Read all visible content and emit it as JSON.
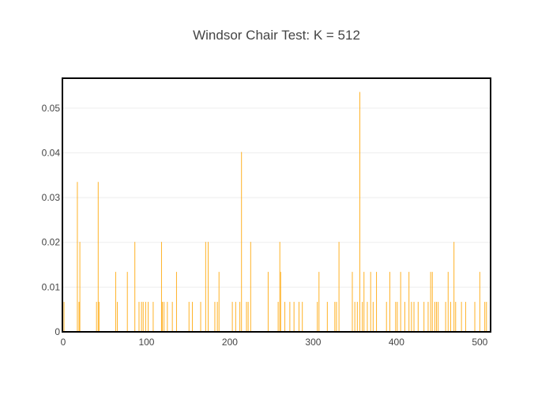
{
  "chart_data": {
    "type": "bar",
    "title": "Windsor Chair Test: K = 512",
    "xlabel": "",
    "ylabel": "",
    "xlim": [
      0,
      512
    ],
    "ylim": [
      0,
      0.0565
    ],
    "x_ticks": [
      0,
      100,
      200,
      300,
      400,
      500
    ],
    "y_ticks": [
      0,
      0.01,
      0.02,
      0.03,
      0.04,
      0.05
    ],
    "y_tick_labels": [
      "0",
      "0.01",
      "0.02",
      "0.03",
      "0.04",
      "0.05"
    ],
    "grid": true,
    "bar_color": "#ffa500",
    "frame_color": "#000000",
    "series": [
      {
        "x": [
          1,
          17,
          19,
          20,
          40,
          42,
          43,
          63,
          65,
          77,
          86,
          91,
          94,
          96,
          99,
          102,
          108,
          118,
          119,
          121,
          125,
          131,
          136,
          151,
          155,
          165,
          171,
          174,
          182,
          185,
          187,
          203,
          207,
          212,
          214,
          220,
          222,
          225,
          246,
          258,
          260,
          261,
          266,
          272,
          277,
          283,
          287,
          305,
          307,
          317,
          326,
          328,
          331,
          347,
          350,
          353,
          356,
          359,
          361,
          365,
          369,
          372,
          376,
          388,
          392,
          399,
          401,
          405,
          410,
          415,
          418,
          421,
          426,
          433,
          438,
          441,
          443,
          446,
          448,
          450,
          459,
          462,
          465,
          469,
          471,
          478,
          483,
          494,
          500,
          506,
          508
        ],
        "values": [
          0.0067,
          0.0335,
          0.0067,
          0.0201,
          0.0067,
          0.0335,
          0.0067,
          0.0134,
          0.0067,
          0.0134,
          0.0201,
          0.0067,
          0.0067,
          0.0067,
          0.0067,
          0.0067,
          0.0067,
          0.0201,
          0.0067,
          0.0067,
          0.0067,
          0.0067,
          0.0134,
          0.0067,
          0.0067,
          0.0067,
          0.0201,
          0.0201,
          0.0067,
          0.0067,
          0.0134,
          0.0067,
          0.0067,
          0.0067,
          0.0402,
          0.0067,
          0.0067,
          0.0201,
          0.0134,
          0.0067,
          0.0201,
          0.0134,
          0.0067,
          0.0067,
          0.0067,
          0.0067,
          0.0067,
          0.0067,
          0.0134,
          0.0067,
          0.0067,
          0.0067,
          0.0201,
          0.0134,
          0.0067,
          0.0067,
          0.0536,
          0.0067,
          0.0134,
          0.0067,
          0.0134,
          0.0067,
          0.0134,
          0.0067,
          0.0134,
          0.0067,
          0.0067,
          0.0134,
          0.0067,
          0.0134,
          0.0067,
          0.0067,
          0.0067,
          0.0067,
          0.0067,
          0.0134,
          0.0134,
          0.0067,
          0.0067,
          0.0067,
          0.0067,
          0.0134,
          0.0067,
          0.0201,
          0.0067,
          0.0067,
          0.0067,
          0.0067,
          0.0134,
          0.0067,
          0.0067
        ]
      }
    ]
  }
}
